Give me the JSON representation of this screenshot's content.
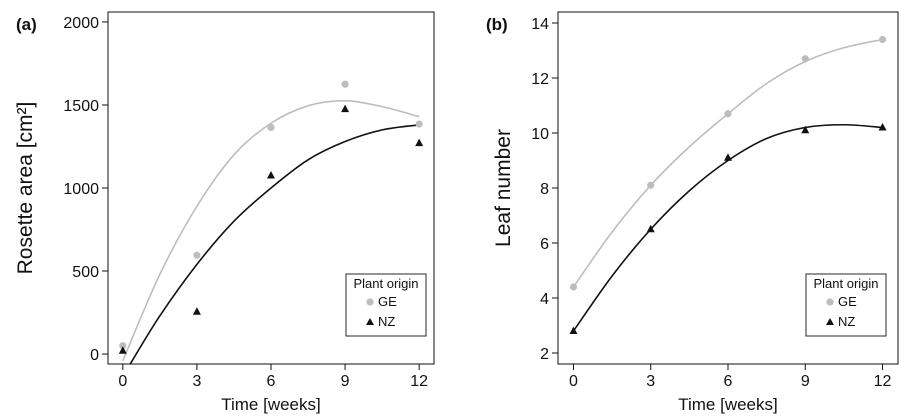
{
  "chart_data": [
    {
      "panel_label": "(a)",
      "type": "scatter",
      "xlabel": "Time [weeks]",
      "ylabel": "Rosette area [cm²]",
      "x_ticks": [
        "0",
        "3",
        "6",
        "9",
        "12"
      ],
      "y_ticks": [
        "0",
        "500",
        "1000",
        "1500",
        "2000"
      ],
      "xlim": [
        -0.6,
        12.6
      ],
      "ylim": [
        -60,
        2060
      ],
      "grid": false,
      "legend": {
        "title": "Plant origin",
        "position": "bottom-right"
      },
      "series": [
        {
          "name": "GE",
          "marker": "circle",
          "color": "#bdbdbd",
          "x": [
            0,
            3,
            6,
            9,
            12
          ],
          "y": [
            50,
            595,
            1365,
            1625,
            1385
          ],
          "fit_x": [
            0,
            1.5,
            3,
            4.5,
            6,
            7.5,
            9,
            10.5,
            12
          ],
          "fit_y": [
            -40,
            480,
            890,
            1200,
            1390,
            1495,
            1525,
            1490,
            1430
          ]
        },
        {
          "name": "NZ",
          "marker": "triangle",
          "color": "#111111",
          "x": [
            0,
            3,
            6,
            9,
            12
          ],
          "y": [
            20,
            255,
            1075,
            1475,
            1270
          ],
          "fit_x": [
            0.3,
            1.5,
            3,
            4.5,
            6,
            7.5,
            9,
            10.5,
            12
          ],
          "fit_y": [
            -60,
            230,
            540,
            800,
            1000,
            1170,
            1280,
            1350,
            1380
          ]
        }
      ]
    },
    {
      "panel_label": "(b)",
      "type": "scatter",
      "xlabel": "Time [weeks]",
      "ylabel": "Leaf number",
      "x_ticks": [
        "0",
        "3",
        "6",
        "9",
        "12"
      ],
      "y_ticks": [
        "2",
        "4",
        "6",
        "8",
        "10",
        "12",
        "14"
      ],
      "xlim": [
        -0.6,
        12.6
      ],
      "ylim": [
        1.6,
        14.4
      ],
      "grid": false,
      "legend": {
        "title": "Plant origin",
        "position": "bottom-right"
      },
      "series": [
        {
          "name": "GE",
          "marker": "circle",
          "color": "#bdbdbd",
          "x": [
            0,
            3,
            6,
            9,
            12
          ],
          "y": [
            4.4,
            8.1,
            10.7,
            12.7,
            13.4
          ],
          "fit_x": [
            0,
            1.5,
            3,
            4.5,
            6,
            7.5,
            9,
            10.5,
            12
          ],
          "fit_y": [
            4.4,
            6.4,
            8.1,
            9.5,
            10.7,
            11.8,
            12.6,
            13.1,
            13.4
          ]
        },
        {
          "name": "NZ",
          "marker": "triangle",
          "color": "#111111",
          "x": [
            0,
            3,
            6,
            9,
            12
          ],
          "y": [
            2.8,
            6.5,
            9.1,
            10.1,
            10.2
          ],
          "fit_x": [
            0,
            1.5,
            3,
            4.5,
            6,
            7.5,
            9,
            10.5,
            12
          ],
          "fit_y": [
            2.8,
            4.8,
            6.5,
            7.9,
            9.0,
            9.8,
            10.2,
            10.3,
            10.2
          ]
        }
      ]
    }
  ]
}
